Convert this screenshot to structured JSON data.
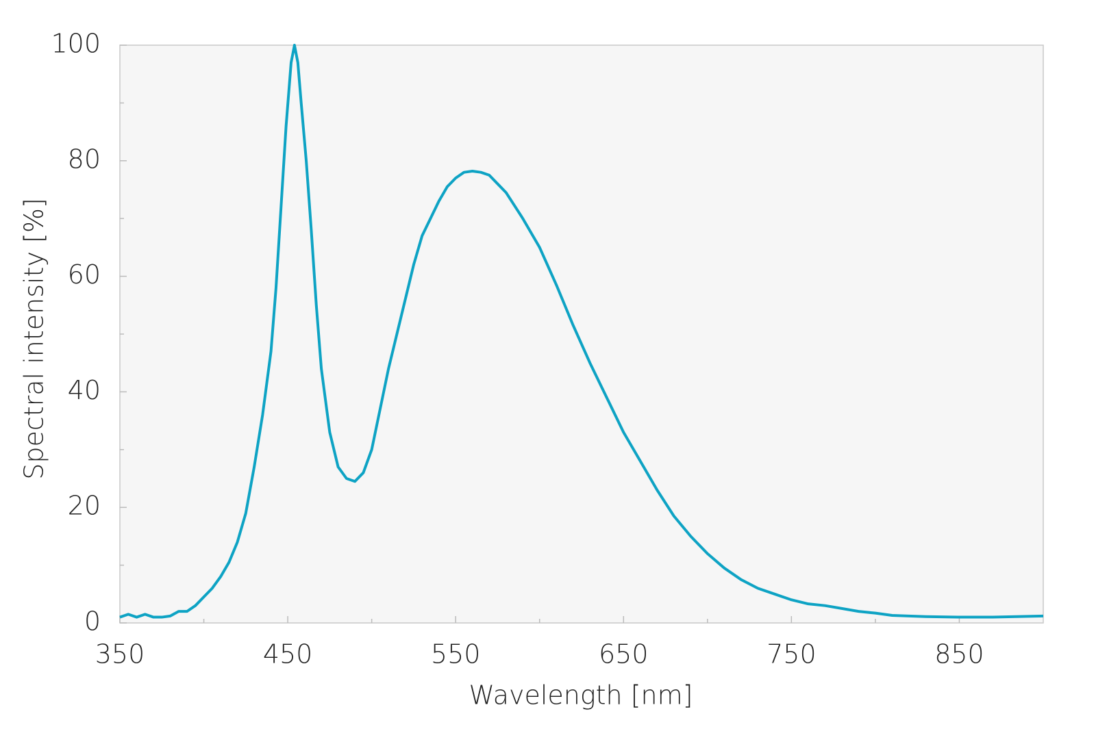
{
  "chart_data": {
    "type": "line",
    "x_label": "Wavelength [nm]",
    "y_label": "Spectral intensity [%]",
    "xlim": [
      350,
      900
    ],
    "ylim": [
      0,
      100
    ],
    "xticks": [
      350,
      450,
      550,
      650,
      750,
      850
    ],
    "xminor": [
      400,
      500,
      600,
      700,
      800
    ],
    "yticks": [
      0,
      20,
      40,
      60,
      80,
      100
    ],
    "yminor": [
      10,
      30,
      50,
      70,
      90
    ],
    "background": "#f6f6f6",
    "series": [
      {
        "name": "Spectral intensity",
        "color": "#0ea3c4",
        "x": [
          350,
          355,
          360,
          365,
          370,
          375,
          380,
          385,
          390,
          395,
          400,
          405,
          410,
          415,
          420,
          425,
          430,
          435,
          440,
          443,
          446,
          449,
          452,
          454,
          456,
          458,
          461,
          464,
          467,
          470,
          475,
          480,
          485,
          490,
          495,
          500,
          505,
          510,
          515,
          520,
          525,
          530,
          535,
          540,
          545,
          550,
          555,
          560,
          565,
          570,
          575,
          580,
          590,
          600,
          610,
          620,
          630,
          640,
          650,
          660,
          670,
          680,
          690,
          700,
          710,
          720,
          730,
          740,
          750,
          760,
          770,
          780,
          790,
          800,
          810,
          830,
          850,
          870,
          900
        ],
        "values": [
          1,
          1.5,
          1,
          1.5,
          1,
          1,
          1.2,
          2,
          2,
          3,
          4.5,
          6,
          8,
          10.5,
          14,
          19,
          27,
          36,
          47,
          58,
          72,
          86,
          97,
          100,
          97,
          90,
          80,
          68,
          55,
          44,
          33,
          27,
          25,
          24.5,
          26,
          30,
          37,
          44,
          50,
          56,
          62,
          67,
          70,
          73,
          75.5,
          77,
          78,
          78.2,
          78,
          77.5,
          76,
          74.5,
          70,
          65,
          58.5,
          51.5,
          45,
          39,
          33,
          28,
          23,
          18.5,
          15,
          12,
          9.5,
          7.5,
          6,
          5,
          4,
          3.3,
          3,
          2.5,
          2,
          1.7,
          1.3,
          1.1,
          1,
          1,
          1.2
        ]
      }
    ]
  }
}
